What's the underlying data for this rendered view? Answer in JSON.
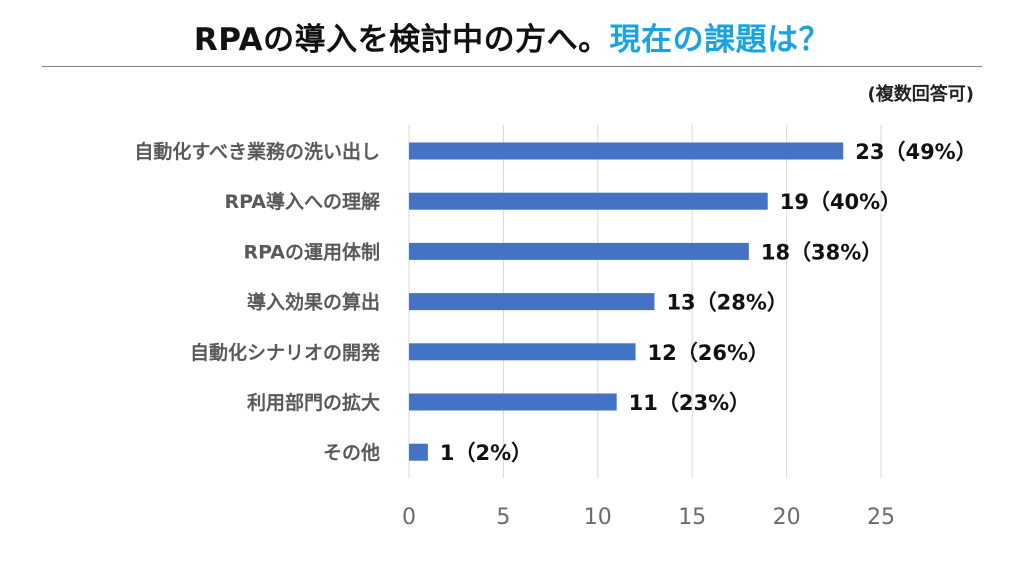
{
  "header": {
    "title_main": "RPAの導入を検討中の方へ。",
    "title_accent": "現在の課題は？",
    "note": "(複数回答可)"
  },
  "colors": {
    "bar": "#4472c4",
    "accent": "#1aa3e0",
    "grid": "#d9d9d9"
  },
  "chart_data": {
    "type": "bar",
    "orientation": "horizontal",
    "categories": [
      "自動化すべき業務の洗い出し",
      "RPA導入への理解",
      "RPAの運用体制",
      "導入効果の算出",
      "自動化シナリオの開発",
      "利用部門の拡大",
      "その他"
    ],
    "values": [
      23,
      19,
      18,
      13,
      12,
      11,
      1
    ],
    "data_labels": [
      "23（49%）",
      "19（40%）",
      "18（38%）",
      "13（28%）",
      "12（26%）",
      "11（23%）",
      "1（2%）"
    ],
    "x_ticks": [
      0,
      5,
      10,
      15,
      20,
      25
    ],
    "xlim": [
      0,
      25
    ],
    "grid": true,
    "legend": "none"
  }
}
